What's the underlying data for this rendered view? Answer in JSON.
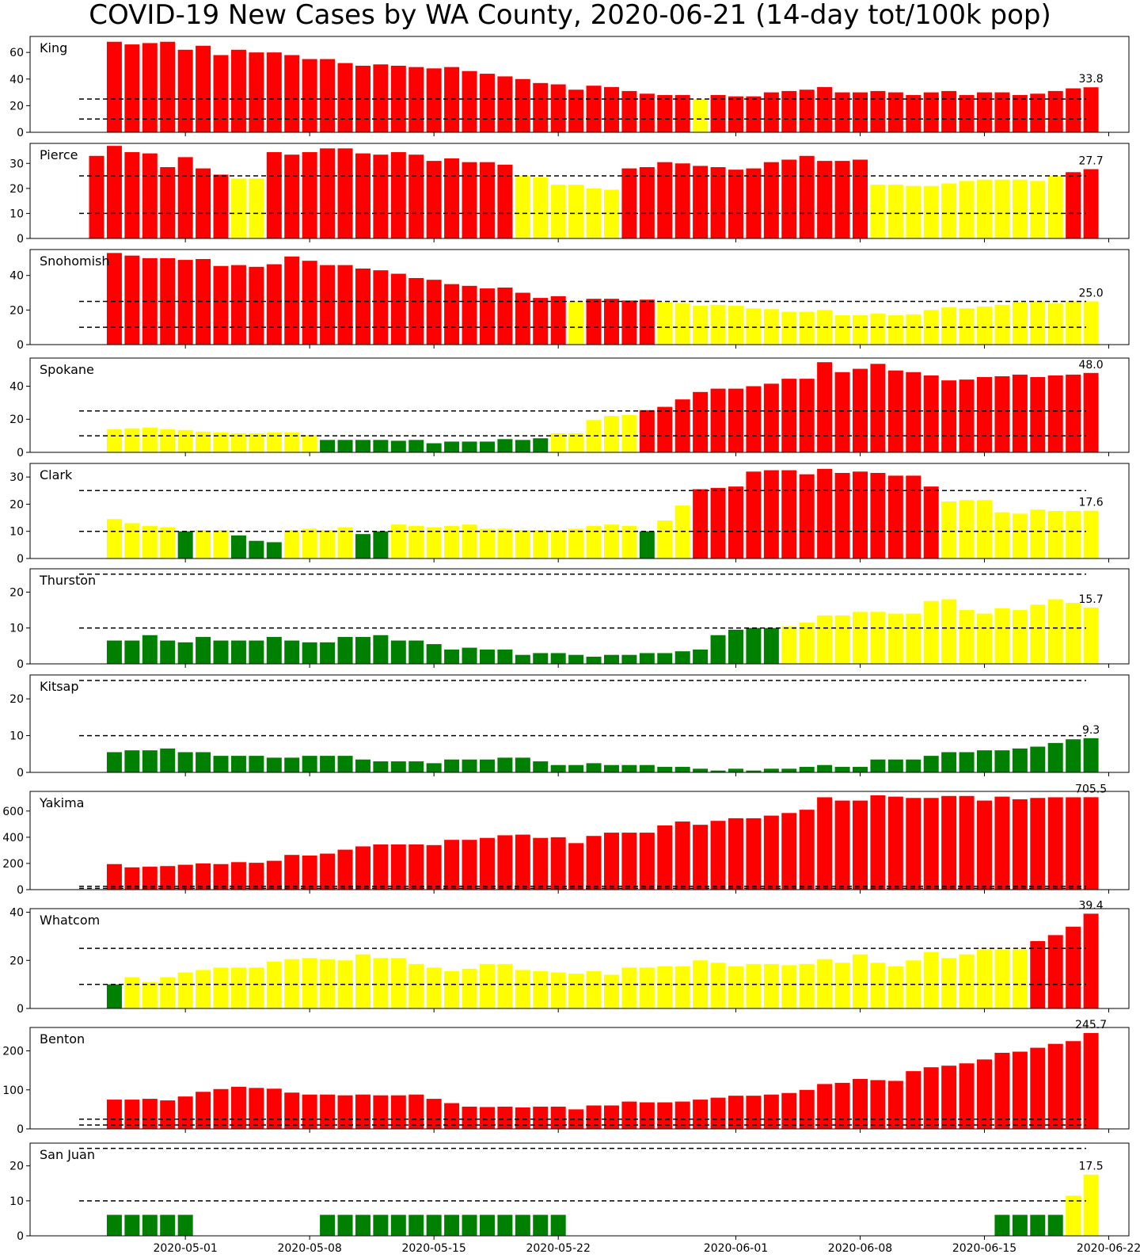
{
  "figure": {
    "title": "COVID-19 New Cases by WA County, 2020-06-21 (14-day tot/100k pop)",
    "x_tick_labels": [
      "2020-05-01",
      "2020-05-08",
      "2020-05-15",
      "2020-05-22",
      "2020-06-01",
      "2020-06-08",
      "2020-06-15",
      "2020-06-22"
    ],
    "x_tick_dates": [
      "2020-05-01",
      "2020-05-08",
      "2020-05-15",
      "2020-05-22",
      "2020-06-01",
      "2020-06-08",
      "2020-06-15",
      "2020-06-22"
    ],
    "first_date": "2020-04-26",
    "last_date": "2020-06-21",
    "threshold_lines": [
      10,
      25
    ],
    "colors": {
      "red": "#ff0000",
      "yellow": "#ffff00",
      "green": "#008000",
      "threshold": "#000000"
    }
  },
  "chart_data": [
    {
      "type": "bar",
      "county": "King",
      "ylim": [
        0,
        72
      ],
      "yticks": [
        0,
        20,
        40,
        60
      ],
      "end_label": "33.8",
      "values": [
        68,
        66,
        67,
        68,
        62,
        65,
        58,
        62,
        60,
        60,
        58,
        55,
        55,
        52,
        50,
        51,
        50,
        49,
        48,
        49,
        46,
        44,
        42,
        40,
        37,
        36,
        32,
        35,
        34,
        31,
        29,
        28,
        28,
        25,
        28,
        27,
        27,
        30,
        31,
        32,
        34,
        30,
        30,
        31,
        30,
        28,
        30,
        31,
        28,
        30,
        30,
        28,
        29,
        31,
        33,
        33.8
      ]
    },
    {
      "type": "bar",
      "county": "Pierce",
      "ylim": [
        0,
        38
      ],
      "yticks": [
        0,
        10,
        20,
        30
      ],
      "end_label": "27.7",
      "values": [
        33,
        37,
        34.5,
        34,
        28.5,
        32.5,
        28,
        25.5,
        24,
        24,
        34.5,
        33.5,
        34.5,
        36,
        36,
        34,
        33.5,
        34.5,
        33.5,
        31,
        32,
        30.5,
        30.5,
        29.5,
        25,
        24.5,
        21.5,
        21.5,
        20,
        19.5,
        28,
        28.5,
        30.5,
        30,
        29,
        28.5,
        27.5,
        28,
        30.5,
        31.5,
        33,
        31,
        31,
        31.5,
        21.5,
        21.5,
        21,
        21,
        22,
        23,
        23.5,
        23.5,
        23.5,
        23,
        25,
        26.5,
        27.7
      ]
    },
    {
      "type": "bar",
      "county": "Snohomish",
      "ylim": [
        0,
        55
      ],
      "yticks": [
        0,
        20,
        40
      ],
      "end_label": "25.0",
      "values": [
        53,
        51.5,
        50,
        50,
        49,
        49.5,
        45.5,
        46,
        45,
        46.5,
        51,
        48.5,
        46,
        46,
        44,
        43,
        41,
        38.5,
        37.5,
        35,
        34,
        32.5,
        33,
        30,
        27,
        28,
        25,
        26.5,
        26.5,
        25.5,
        26,
        24.5,
        24,
        22.5,
        23,
        22.5,
        21,
        20.5,
        19,
        19,
        20,
        17,
        17,
        18,
        17,
        17.5,
        20,
        21.5,
        21,
        22,
        23,
        24.5,
        25,
        24,
        25,
        25.0
      ]
    },
    {
      "type": "bar",
      "county": "Spokane",
      "ylim": [
        0,
        57
      ],
      "yticks": [
        0,
        20,
        40
      ],
      "end_label": "48.0",
      "values": [
        14,
        14.5,
        15,
        14,
        13.5,
        12.5,
        12,
        11.5,
        11.5,
        12,
        12,
        10.5,
        7.5,
        7.5,
        7.5,
        7.5,
        7,
        7.5,
        5.5,
        6.5,
        6.5,
        6.5,
        8,
        7.5,
        8.5,
        11.5,
        11.5,
        19.5,
        22,
        22.5,
        25.5,
        27.5,
        32,
        36.5,
        38.5,
        38.5,
        40,
        41.5,
        44.5,
        44.5,
        54.5,
        48.5,
        50.5,
        53.5,
        49.5,
        48.5,
        46.5,
        43.5,
        44,
        45.5,
        46,
        47,
        45.5,
        46.5,
        47,
        48.0
      ]
    },
    {
      "type": "bar",
      "county": "Clark",
      "ylim": [
        0,
        35
      ],
      "yticks": [
        0,
        10,
        20,
        30
      ],
      "end_label": "17.6",
      "values": [
        14.5,
        13,
        12,
        11.5,
        10,
        10.5,
        10.5,
        8.5,
        6.5,
        6,
        10.5,
        11,
        10.5,
        11.5,
        9,
        10,
        12.5,
        12,
        11.5,
        12,
        12.5,
        11,
        11,
        10.5,
        10.5,
        10.5,
        11,
        12,
        12.5,
        12,
        10,
        14,
        19.5,
        25.5,
        26,
        26.5,
        32,
        32.5,
        32.5,
        31,
        33,
        31.5,
        32,
        31.5,
        30.5,
        30.5,
        26.5,
        21,
        21.5,
        21.5,
        17,
        16.5,
        18,
        17.5,
        17.5,
        17.6
      ]
    },
    {
      "type": "bar",
      "county": "Thurston",
      "ylim": [
        0,
        26.5
      ],
      "yticks": [
        0,
        10,
        20
      ],
      "end_label": "15.7",
      "values": [
        6.5,
        6.5,
        8,
        6.5,
        6,
        7.5,
        6.5,
        6.5,
        6.5,
        7.5,
        6.5,
        6,
        6,
        7.5,
        7.5,
        8,
        6.5,
        6.5,
        5.5,
        4,
        4.5,
        4,
        4,
        2.5,
        3,
        3,
        2.5,
        2,
        2.5,
        2.5,
        3,
        3,
        3.5,
        4,
        8,
        9.5,
        10,
        10,
        10.5,
        11.5,
        13.5,
        13.5,
        14.5,
        14.5,
        14,
        14,
        17.5,
        18,
        15,
        14,
        15.5,
        15,
        16.5,
        18,
        17,
        15.7
      ]
    },
    {
      "type": "bar",
      "county": "Kitsap",
      "ylim": [
        0,
        26.5
      ],
      "yticks": [
        0,
        10,
        20
      ],
      "end_label": "9.3",
      "values": [
        5.5,
        6,
        6,
        6.5,
        5.5,
        5.5,
        4.5,
        4.5,
        4.5,
        4,
        4,
        4.5,
        4.5,
        4.5,
        3.5,
        3,
        3,
        3,
        2.5,
        3.5,
        3.5,
        3.5,
        4,
        4,
        3,
        2,
        2,
        2.5,
        2,
        2,
        2,
        1.5,
        1.5,
        1,
        0.5,
        1,
        0.5,
        1,
        1,
        1.5,
        2,
        1.5,
        1.5,
        3.5,
        3.5,
        3.5,
        4.5,
        5.5,
        5.5,
        6,
        6,
        6.5,
        7,
        8,
        9,
        9.3
      ]
    },
    {
      "type": "bar",
      "county": "Yakima",
      "ylim": [
        0,
        750
      ],
      "yticks": [
        0,
        200,
        400,
        600
      ],
      "end_label": "705.5",
      "values": [
        195,
        170,
        175,
        180,
        190,
        200,
        195,
        210,
        205,
        220,
        265,
        260,
        275,
        305,
        330,
        345,
        345,
        345,
        340,
        380,
        380,
        395,
        415,
        420,
        395,
        400,
        355,
        410,
        435,
        435,
        435,
        490,
        520,
        495,
        525,
        545,
        545,
        565,
        585,
        610,
        705,
        680,
        680,
        720,
        710,
        700,
        700,
        715,
        715,
        680,
        710,
        690,
        700,
        705,
        705,
        705.5
      ]
    },
    {
      "type": "bar",
      "county": "Whatcom",
      "ylim": [
        0,
        41.5
      ],
      "yticks": [
        0,
        20,
        40
      ],
      "end_label": "39.4",
      "values": [
        10,
        13,
        11,
        13,
        15,
        16,
        17,
        17,
        17,
        19.5,
        20.5,
        21,
        20.5,
        20,
        22.5,
        21,
        21,
        18.5,
        17,
        15.5,
        16.5,
        18.5,
        18.5,
        16,
        15.5,
        15,
        14.5,
        15.5,
        14,
        17,
        17,
        17.5,
        17.5,
        20,
        19,
        17.5,
        18.5,
        18.5,
        18,
        18.5,
        20.5,
        19,
        22.5,
        19,
        17.5,
        20,
        23.5,
        21,
        22.5,
        24.5,
        24.5,
        24.5,
        28,
        30.5,
        34,
        39.4
      ]
    },
    {
      "type": "bar",
      "county": "Benton",
      "ylim": [
        0,
        260
      ],
      "yticks": [
        0,
        100,
        200
      ],
      "end_label": "245.7",
      "values": [
        75,
        75,
        77,
        73,
        83,
        95,
        102,
        108,
        105,
        103,
        93,
        88,
        88,
        86,
        88,
        86,
        86,
        88,
        77,
        66,
        57,
        56,
        57,
        55,
        57,
        57,
        50,
        60,
        60,
        70,
        68,
        68,
        70,
        75,
        80,
        85,
        85,
        88,
        92,
        100,
        115,
        118,
        128,
        125,
        123,
        148,
        158,
        162,
        168,
        178,
        195,
        198,
        208,
        218,
        225,
        245.7
      ]
    },
    {
      "type": "bar",
      "county": "San Juan",
      "ylim": [
        0,
        26.5
      ],
      "yticks": [
        0,
        10,
        20
      ],
      "end_label": "17.5",
      "values": [
        6,
        6,
        6,
        6,
        6,
        0,
        0,
        0,
        0,
        0,
        0,
        0,
        6,
        6,
        6,
        6,
        6,
        6,
        6,
        6,
        6,
        6,
        6,
        6,
        6,
        6,
        0,
        0,
        0,
        0,
        0,
        0,
        0,
        0,
        0,
        0,
        0,
        0,
        0,
        0,
        0,
        0,
        0,
        0,
        0,
        0,
        0,
        0,
        0,
        0,
        6,
        6,
        6,
        6,
        11.5,
        17.5
      ]
    }
  ]
}
